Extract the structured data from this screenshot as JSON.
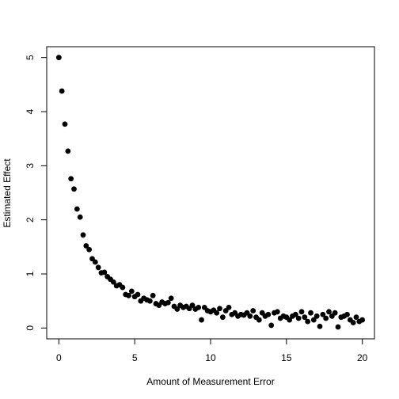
{
  "chart_data": {
    "type": "scatter",
    "xlabel": "Amount of Measurement Error",
    "ylabel": "Estimated Effect",
    "color": "#000000",
    "x": [
      0,
      0.2,
      0.4,
      0.6,
      0.8,
      1.0,
      1.2,
      1.4,
      1.6,
      1.8,
      2.0,
      2.2,
      2.4,
      2.6,
      2.8,
      3.0,
      3.2,
      3.4,
      3.6,
      3.8,
      4.0,
      4.2,
      4.4,
      4.6,
      4.8,
      5.0,
      5.2,
      5.4,
      5.6,
      5.8,
      6.0,
      6.2,
      6.4,
      6.6,
      6.8,
      7.0,
      7.2,
      7.4,
      7.6,
      7.8,
      8.0,
      8.2,
      8.4,
      8.6,
      8.8,
      9.0,
      9.2,
      9.4,
      9.6,
      9.8,
      10.0,
      10.2,
      10.4,
      10.6,
      10.8,
      11.0,
      11.2,
      11.4,
      11.6,
      11.8,
      12.0,
      12.2,
      12.4,
      12.6,
      12.8,
      13.0,
      13.2,
      13.4,
      13.6,
      13.8,
      14.0,
      14.2,
      14.4,
      14.6,
      14.8,
      15.0,
      15.2,
      15.4,
      15.6,
      15.8,
      16.0,
      16.2,
      16.4,
      16.6,
      16.8,
      17.0,
      17.2,
      17.4,
      17.6,
      17.8,
      18.0,
      18.2,
      18.4,
      18.6,
      18.8,
      19.0,
      19.2,
      19.4,
      19.6,
      19.8,
      20.0
    ],
    "values": [
      5.0,
      4.38,
      3.77,
      3.27,
      2.76,
      2.57,
      2.2,
      2.05,
      1.72,
      1.52,
      1.45,
      1.28,
      1.22,
      1.12,
      1.02,
      1.03,
      0.95,
      0.9,
      0.85,
      0.78,
      0.8,
      0.75,
      0.62,
      0.6,
      0.68,
      0.58,
      0.62,
      0.5,
      0.55,
      0.52,
      0.5,
      0.6,
      0.45,
      0.42,
      0.48,
      0.45,
      0.47,
      0.55,
      0.4,
      0.35,
      0.42,
      0.38,
      0.4,
      0.36,
      0.42,
      0.35,
      0.38,
      0.15,
      0.38,
      0.32,
      0.3,
      0.33,
      0.28,
      0.36,
      0.2,
      0.32,
      0.38,
      0.25,
      0.28,
      0.22,
      0.25,
      0.24,
      0.28,
      0.22,
      0.32,
      0.2,
      0.15,
      0.28,
      0.22,
      0.25,
      0.05,
      0.28,
      0.3,
      0.18,
      0.22,
      0.2,
      0.15,
      0.22,
      0.25,
      0.18,
      0.3,
      0.2,
      0.12,
      0.28,
      0.15,
      0.22,
      0.03,
      0.25,
      0.18,
      0.3,
      0.22,
      0.28,
      0.02,
      0.2,
      0.22,
      0.25,
      0.15,
      0.1,
      0.2,
      0.12,
      0.15
    ],
    "xlim": [
      -0.8,
      20.8
    ],
    "ylim": [
      -0.2,
      5.2
    ],
    "xticks": [
      0,
      5,
      10,
      15,
      20
    ],
    "yticks": [
      0,
      1,
      2,
      3,
      4,
      5
    ]
  }
}
